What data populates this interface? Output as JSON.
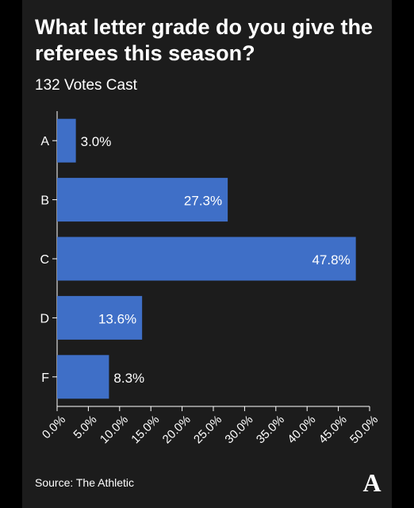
{
  "title": "What letter grade do you give the referees this season?",
  "subtitle": "132 Votes Cast",
  "source": "Source: The Athletic",
  "logo_letter": "A",
  "colors": {
    "background": "#1c1c1c",
    "bar": "#3f6fc7",
    "text": "#ffffff"
  },
  "chart_data": {
    "type": "bar",
    "orientation": "horizontal",
    "categories": [
      "A",
      "B",
      "C",
      "D",
      "F"
    ],
    "values": [
      3.0,
      27.3,
      47.8,
      13.6,
      8.3
    ],
    "data_labels": [
      "3.0%",
      "27.3%",
      "47.8%",
      "13.6%",
      "8.3%"
    ],
    "xlim": [
      0,
      50
    ],
    "x_ticks": [
      0,
      5,
      10,
      15,
      20,
      25,
      30,
      35,
      40,
      45,
      50
    ],
    "x_tick_labels": [
      "0.0%",
      "5.0%",
      "10.0%",
      "15.0%",
      "20.0%",
      "25.0%",
      "30.0%",
      "35.0%",
      "40.0%",
      "45.0%",
      "50.0%"
    ],
    "title": "What letter grade do you give the referees this season?",
    "xlabel": "",
    "ylabel": "",
    "grid": false,
    "legend": "none"
  }
}
